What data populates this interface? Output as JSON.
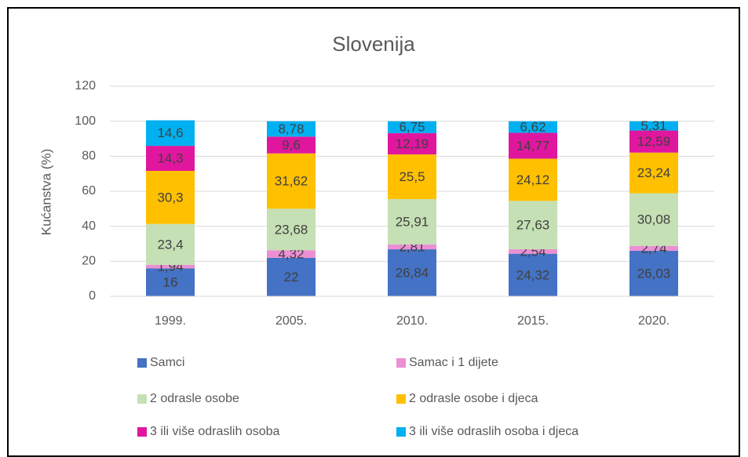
{
  "chart_data": {
    "type": "stacked_bar",
    "title": "Slovenija",
    "y_label": "Kućanstva (%)",
    "categories": [
      "1999.",
      "2005.",
      "2010.",
      "2015.",
      "2020."
    ],
    "series": [
      {
        "name": "Samci",
        "color": "#4472c4",
        "values": [
          16,
          22,
          26.84,
          24.32,
          26.03
        ],
        "value_labels": [
          "16",
          "22",
          "26,84",
          "24,32",
          "26,03"
        ]
      },
      {
        "name": "Samac i 1 dijete",
        "color": "#ec8fd4",
        "values": [
          1.94,
          4.32,
          2.81,
          2.54,
          2.74
        ],
        "value_labels": [
          "1,94",
          "4,32",
          "2,81",
          "2,54",
          "2,74"
        ]
      },
      {
        "name": "2 odrasle osobe",
        "color": "#c5e0b4",
        "values": [
          23.4,
          23.68,
          25.91,
          27.63,
          30.08
        ],
        "value_labels": [
          "23,4",
          "23,68",
          "25,91",
          "27,63",
          "30,08"
        ]
      },
      {
        "name": "2 odrasle osobe i djeca",
        "color": "#ffc000",
        "values": [
          30.3,
          31.62,
          25.5,
          24.12,
          23.24
        ],
        "value_labels": [
          "30,3",
          "31,62",
          "25,5",
          "24,12",
          "23,24"
        ]
      },
      {
        "name": "3 ili više odraslih osoba",
        "color": "#e0179e",
        "values": [
          14.3,
          9.6,
          12.19,
          14.77,
          12.59
        ],
        "value_labels": [
          "14,3",
          "9,6",
          "12,19",
          "14,77",
          "12,59"
        ]
      },
      {
        "name": "3 ili više odraslih osoba i djeca",
        "color": "#00b0f0",
        "values": [
          14.6,
          8.78,
          6.75,
          6.62,
          5.31
        ],
        "value_labels": [
          "14,6",
          "8,78",
          "6,75",
          "6,62",
          "5,31"
        ]
      }
    ],
    "ylim": [
      0,
      120
    ],
    "yticks": [
      0,
      20,
      40,
      60,
      80,
      100,
      120
    ],
    "grid": true
  }
}
